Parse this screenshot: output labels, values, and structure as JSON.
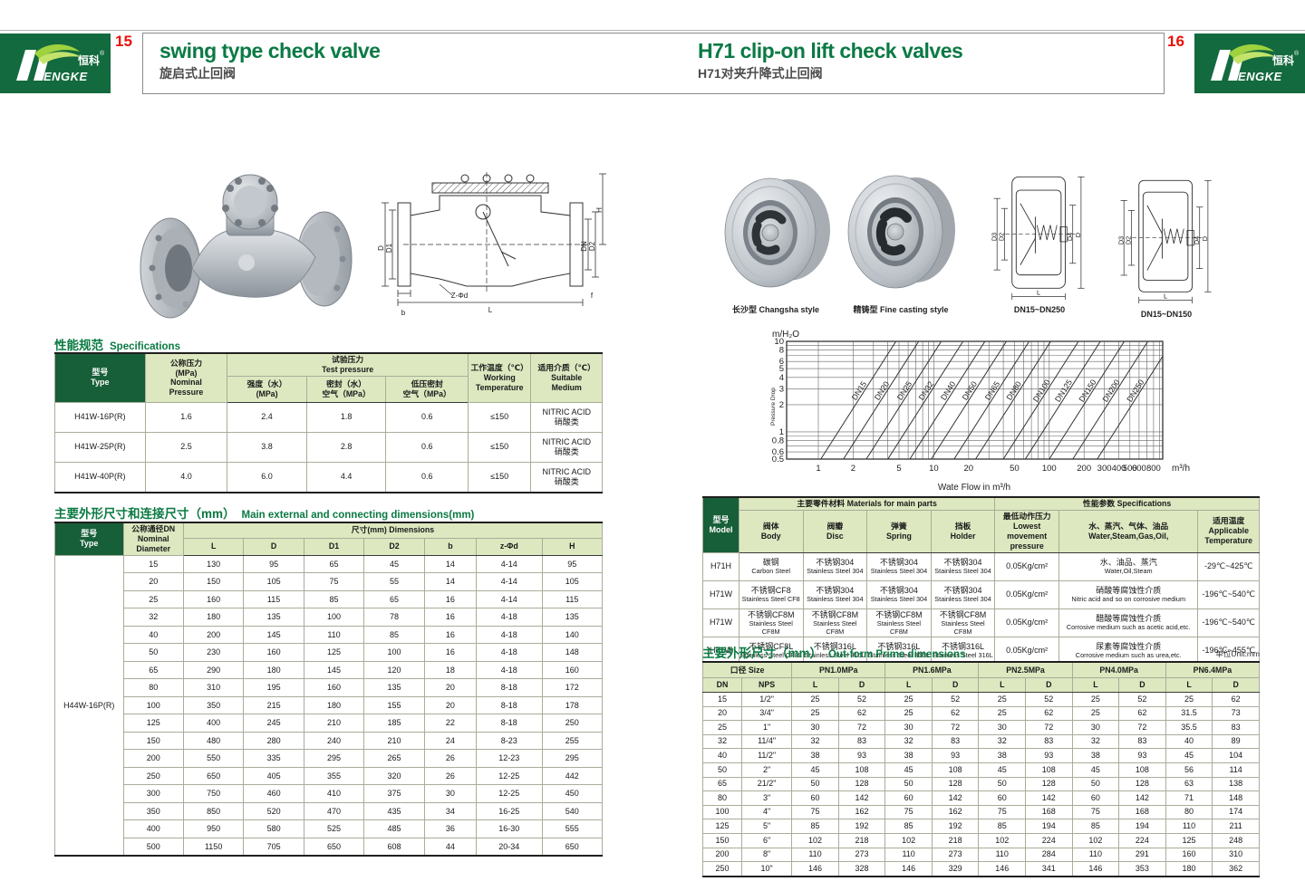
{
  "logo": {
    "zh": "恒科",
    "reg": "®",
    "text": "ENGKE"
  },
  "page_left": {
    "page_no": "15",
    "title_en": "swing type check valve",
    "title_zh": "旋启式止回阀",
    "spec_section": {
      "title_zh": "性能规范",
      "title_en": "Specifications",
      "header": {
        "type": [
          "型号",
          "Type"
        ],
        "nominal": [
          "公称压力",
          "(MPa)",
          "Nominal",
          "Pressure"
        ],
        "test": [
          "试验压力",
          "Test pressure"
        ],
        "test_sub": [
          [
            "强度（水）",
            "(MPa)"
          ],
          [
            "密封（水）",
            "空气（MPa）"
          ],
          [
            "低压密封",
            "空气（MPa）"
          ]
        ],
        "working": [
          "工作温度（℃）",
          "Working",
          "Temperature"
        ],
        "medium": [
          "适用介质（℃）",
          "Suitable",
          "Medium"
        ]
      },
      "rows": [
        {
          "model": "H41W-16P(R)",
          "nominal": "1.6",
          "strength": "2.4",
          "seal": "1.8",
          "low": "0.6",
          "temp": "≤150",
          "medium": [
            "NITRIC ACID",
            "硝酸类"
          ]
        },
        {
          "model": "H41W-25P(R)",
          "nominal": "2.5",
          "strength": "3.8",
          "seal": "2.8",
          "low": "0.6",
          "temp": "≤150",
          "medium": [
            "NITRIC ACID",
            "硝酸类"
          ]
        },
        {
          "model": "H41W-40P(R)",
          "nominal": "4.0",
          "strength": "6.0",
          "seal": "4.4",
          "low": "0.6",
          "temp": "≤150",
          "medium": [
            "NITRIC ACID",
            "硝酸类"
          ]
        }
      ]
    },
    "dims_section": {
      "title_zh": "主要外形尺寸和连接尺寸（mm）",
      "title_en": "Main external and connecting dimensions(mm)",
      "header": {
        "type": [
          "型号",
          "Type"
        ],
        "dn": [
          "公称通径DN",
          "Nominal",
          "Diameter"
        ],
        "span": "尺寸(mm) Dimensions",
        "cols": [
          "L",
          "D",
          "D1",
          "D2",
          "b",
          "z-Φd",
          "H"
        ]
      },
      "type_label": "H44W-16P(R)",
      "rows": [
        [
          "15",
          "130",
          "95",
          "65",
          "45",
          "14",
          "4-14",
          "95"
        ],
        [
          "20",
          "150",
          "105",
          "75",
          "55",
          "14",
          "4-14",
          "105"
        ],
        [
          "25",
          "160",
          "115",
          "85",
          "65",
          "16",
          "4-14",
          "115"
        ],
        [
          "32",
          "180",
          "135",
          "100",
          "78",
          "16",
          "4-18",
          "135"
        ],
        [
          "40",
          "200",
          "145",
          "110",
          "85",
          "16",
          "4-18",
          "140"
        ],
        [
          "50",
          "230",
          "160",
          "125",
          "100",
          "16",
          "4-18",
          "148"
        ],
        [
          "65",
          "290",
          "180",
          "145",
          "120",
          "18",
          "4-18",
          "160"
        ],
        [
          "80",
          "310",
          "195",
          "160",
          "135",
          "20",
          "8-18",
          "172"
        ],
        [
          "100",
          "350",
          "215",
          "180",
          "155",
          "20",
          "8-18",
          "178"
        ],
        [
          "125",
          "400",
          "245",
          "210",
          "185",
          "22",
          "8-18",
          "250"
        ],
        [
          "150",
          "480",
          "280",
          "240",
          "210",
          "24",
          "8-23",
          "255"
        ],
        [
          "200",
          "550",
          "335",
          "295",
          "265",
          "26",
          "12-23",
          "295"
        ],
        [
          "250",
          "650",
          "405",
          "355",
          "320",
          "26",
          "12-25",
          "442"
        ],
        [
          "300",
          "750",
          "460",
          "410",
          "375",
          "30",
          "12-25",
          "450"
        ],
        [
          "350",
          "850",
          "520",
          "470",
          "435",
          "34",
          "16-25",
          "540"
        ],
        [
          "400",
          "950",
          "580",
          "525",
          "485",
          "36",
          "16-30",
          "555"
        ],
        [
          "500",
          "1150",
          "705",
          "650",
          "608",
          "44",
          "20-34",
          "650"
        ]
      ]
    },
    "drawing_labels": [
      "D",
      "D1",
      "DN",
      "D2",
      "H",
      "L",
      "b",
      "Z-Φd",
      "f"
    ]
  },
  "page_right": {
    "page_no": "16",
    "title_en": "H71 clip-on lift check valves",
    "title_zh": "H71对夹升降式止回阀",
    "captions": [
      "长沙型 Changsha style",
      "精铸型 Fine casting style",
      "DN15~DN250",
      "DN15~DN150"
    ],
    "wafer_labels": [
      "D3",
      "D2",
      "D4",
      "D",
      "L"
    ],
    "materials_table": {
      "header": {
        "model": [
          "型号",
          "Model"
        ],
        "main": "主要零件材料 Materials for main parts",
        "spec": "性能参数 Specifications",
        "subs": [
          [
            "阀体",
            "Body"
          ],
          [
            "阀瓣",
            "Disc"
          ],
          [
            "弹簧",
            "Spring"
          ],
          [
            "挡板",
            "Holder"
          ],
          [
            "最低动作压力",
            "Lowest movement",
            "pressure"
          ],
          [
            "水、蒸汽、气体、油品",
            "Water,Steam,Gas,Oil,"
          ],
          [
            "适用温度",
            "Applicable",
            "Temperature"
          ]
        ]
      },
      "rows": [
        {
          "model": "H71H",
          "body": [
            "碳钢",
            "Carbon Steel"
          ],
          "disc": [
            "不锈钢304",
            "Stainless Steel 304"
          ],
          "spring": [
            "不锈钢304",
            "Stainless Steel 304"
          ],
          "holder": [
            "不锈钢304",
            "Stainless Steel 304"
          ],
          "pressure": "0.05Kg/cm²",
          "medium": [
            "水、油品、蒸汽",
            "Water,Oil,Steam"
          ],
          "temp": "-29℃~425℃"
        },
        {
          "model": "H71W",
          "body": [
            "不锈钢CF8",
            "Stainless Steel CF8"
          ],
          "disc": [
            "不锈钢304",
            "Stainless Steel 304"
          ],
          "spring": [
            "不锈钢304",
            "Stainless Steel 304"
          ],
          "holder": [
            "不锈钢304",
            "Stainless Steel 304"
          ],
          "pressure": "0.05Kg/cm²",
          "medium": [
            "硝酸等腐蚀性介质",
            "Nitric acid and so on corrosive medium"
          ],
          "temp": "-196℃~540℃"
        },
        {
          "model": "H71W",
          "body": [
            "不锈钢CF8M",
            "Stainless Steel CF8M"
          ],
          "disc": [
            "不锈钢CF8M",
            "Stainless Steel CF8M"
          ],
          "spring": [
            "不锈钢CF8M",
            "Stainless Steel CF8M"
          ],
          "holder": [
            "不锈钢CF8M",
            "Stainless Steel CF8M"
          ],
          "pressure": "0.05Kg/cm²",
          "medium": [
            "醋酸等腐蚀性介质",
            "Corrosive medium such as acetic acid,etc."
          ],
          "temp": "-196℃~540℃"
        },
        {
          "model": "H71W",
          "body": [
            "不锈钢CF8L",
            "Stainless Steel CF8L"
          ],
          "disc": [
            "不锈钢316L",
            "Stainless Steel 316L"
          ],
          "spring": [
            "不锈钢316L",
            "Stainless Steel 316L"
          ],
          "holder": [
            "不锈钢316L",
            "Stainless Steel 316L"
          ],
          "pressure": "0.05Kg/cm²",
          "medium": [
            "尿素等腐蚀性介质",
            "Corrosive medium such as urea,etc."
          ],
          "temp": "-196℃~455℃"
        }
      ]
    },
    "outform_section": {
      "title_zh": "主要外形尺寸（mm）",
      "title_en": "Out-form Prime dimensions",
      "unit": "单位Unit:mm",
      "header": {
        "size": "口径 Size",
        "dn": "DN",
        "nps": "NPS",
        "pn_groups": [
          "PN1.0MPa",
          "PN1.6MPa",
          "PN2.5MPa",
          "PN4.0MPa",
          "PN6.4MPa"
        ],
        "sub": [
          "L",
          "D"
        ]
      },
      "rows": [
        [
          "15",
          "1/2\"",
          "25",
          "52",
          "25",
          "52",
          "25",
          "52",
          "25",
          "52",
          "25",
          "62"
        ],
        [
          "20",
          "3/4\"",
          "25",
          "62",
          "25",
          "62",
          "25",
          "62",
          "25",
          "62",
          "31.5",
          "73"
        ],
        [
          "25",
          "1\"",
          "30",
          "72",
          "30",
          "72",
          "30",
          "72",
          "30",
          "72",
          "35.5",
          "83"
        ],
        [
          "32",
          "11/4\"",
          "32",
          "83",
          "32",
          "83",
          "32",
          "83",
          "32",
          "83",
          "40",
          "89"
        ],
        [
          "40",
          "11/2\"",
          "38",
          "93",
          "38",
          "93",
          "38",
          "93",
          "38",
          "93",
          "45",
          "104"
        ],
        [
          "50",
          "2\"",
          "45",
          "108",
          "45",
          "108",
          "45",
          "108",
          "45",
          "108",
          "56",
          "114"
        ],
        [
          "65",
          "21/2\"",
          "50",
          "128",
          "50",
          "128",
          "50",
          "128",
          "50",
          "128",
          "63",
          "138"
        ],
        [
          "80",
          "3\"",
          "60",
          "142",
          "60",
          "142",
          "60",
          "142",
          "60",
          "142",
          "71",
          "148"
        ],
        [
          "100",
          "4\"",
          "75",
          "162",
          "75",
          "162",
          "75",
          "168",
          "75",
          "168",
          "80",
          "174"
        ],
        [
          "125",
          "5\"",
          "85",
          "192",
          "85",
          "192",
          "85",
          "194",
          "85",
          "194",
          "110",
          "211"
        ],
        [
          "150",
          "6\"",
          "102",
          "218",
          "102",
          "218",
          "102",
          "224",
          "102",
          "224",
          "125",
          "248"
        ],
        [
          "200",
          "8\"",
          "110",
          "273",
          "110",
          "273",
          "110",
          "284",
          "110",
          "291",
          "160",
          "310"
        ],
        [
          "250",
          "10\"",
          "146",
          "328",
          "146",
          "329",
          "146",
          "341",
          "146",
          "353",
          "180",
          "362"
        ]
      ]
    }
  },
  "chart_data": {
    "type": "line",
    "scale": "log-log",
    "ylabel_unit": "m/H₂O",
    "ylabel": "Pressure Drop",
    "xlabel": "Wate Flow in m³/h",
    "x_unit": "m³/h",
    "x_ticks": [
      1,
      2,
      5,
      10,
      20,
      50,
      100,
      200,
      300,
      400,
      500,
      600,
      800
    ],
    "y_ticks": [
      10,
      8,
      6,
      5,
      4,
      3,
      2,
      1,
      0.8,
      0.6,
      0.5
    ],
    "xlim": [
      0.76,
      960
    ],
    "ylim": [
      0.5,
      10
    ],
    "grid": true,
    "lines": [
      {
        "label": "DN15",
        "x_at_ymin": 1.05,
        "x_at_ymax": 4.7
      },
      {
        "label": "DN20",
        "x_at_ymin": 1.65,
        "x_at_ymax": 7.4
      },
      {
        "label": "DN25",
        "x_at_ymin": 2.6,
        "x_at_ymax": 11.6
      },
      {
        "label": "DN32",
        "x_at_ymin": 4.0,
        "x_at_ymax": 17.9
      },
      {
        "label": "DN40",
        "x_at_ymin": 6.2,
        "x_at_ymax": 27.7
      },
      {
        "label": "DN50",
        "x_at_ymin": 9.5,
        "x_at_ymax": 42.5
      },
      {
        "label": "DN65",
        "x_at_ymin": 15,
        "x_at_ymax": 67
      },
      {
        "label": "DN80",
        "x_at_ymin": 23,
        "x_at_ymax": 103
      },
      {
        "label": "DN100",
        "x_at_ymin": 40,
        "x_at_ymax": 179
      },
      {
        "label": "DN125",
        "x_at_ymin": 62,
        "x_at_ymax": 277
      },
      {
        "label": "DN150",
        "x_at_ymin": 100,
        "x_at_ymax": 447
      },
      {
        "label": "DN200",
        "x_at_ymin": 160,
        "x_at_ymax": 715
      },
      {
        "label": "DN250",
        "x_at_ymin": 260,
        "x_at_ymax": 1162
      }
    ]
  },
  "colors": {
    "brand_green": "#136a3e",
    "title_green": "#0b7a45",
    "accent_red": "#e8120c",
    "header_dark_green": "#175f38",
    "header_light_green": "#dde8c0"
  }
}
